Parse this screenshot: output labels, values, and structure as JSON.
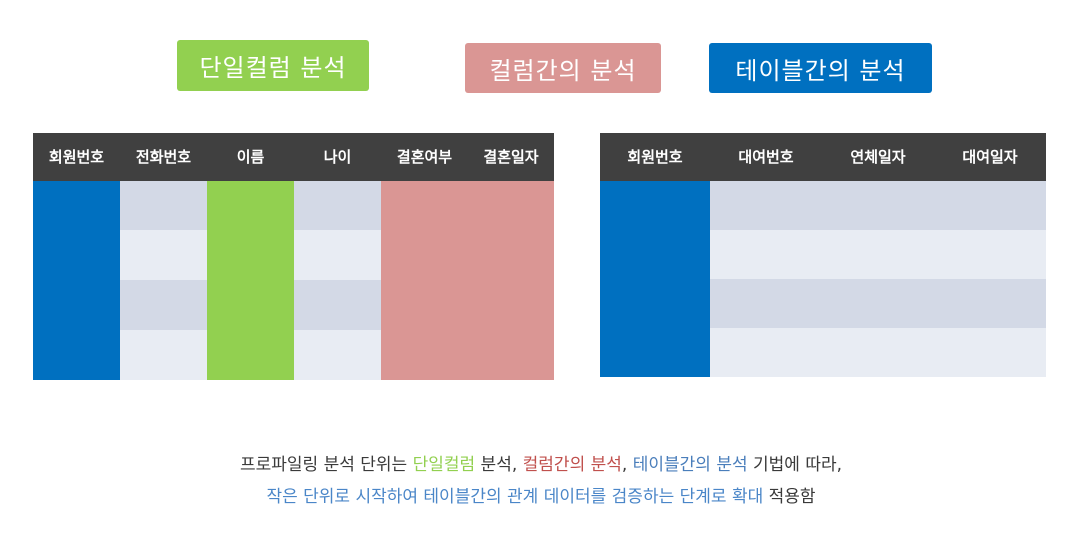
{
  "badges": {
    "single_column": "단일컬럼 분석",
    "cross_column": "컬럼간의 분석",
    "cross_table": "테이블간의 분석"
  },
  "left_table": {
    "headers": [
      "회원번호",
      "전화번호",
      "이름",
      "나이",
      "결혼여부",
      "결혼일자"
    ]
  },
  "right_table": {
    "headers": [
      "회원번호",
      "대여번호",
      "연체일자",
      "대여일자"
    ]
  },
  "caption": {
    "line1_a": "프로파일링 분석 단위는 ",
    "line1_b": "단일컬럼",
    "line1_c": " 분석, ",
    "line1_d": "컬럼간의 분석",
    "line1_e": ", ",
    "line1_f": "테이블간의 분석",
    "line1_g": " 기법에 따라,",
    "line2_a": "작은 단위로 시작하여 테이블간의 관계 데이터를 검증하는 단계로 확대",
    "line2_b": " 적용함"
  },
  "colors": {
    "single_column": "#92d050",
    "cross_column": "#da9694",
    "cross_table": "#0070c0",
    "header": "#404040",
    "row_dark": "#d3d9e6",
    "row_light": "#e8ecf3"
  }
}
